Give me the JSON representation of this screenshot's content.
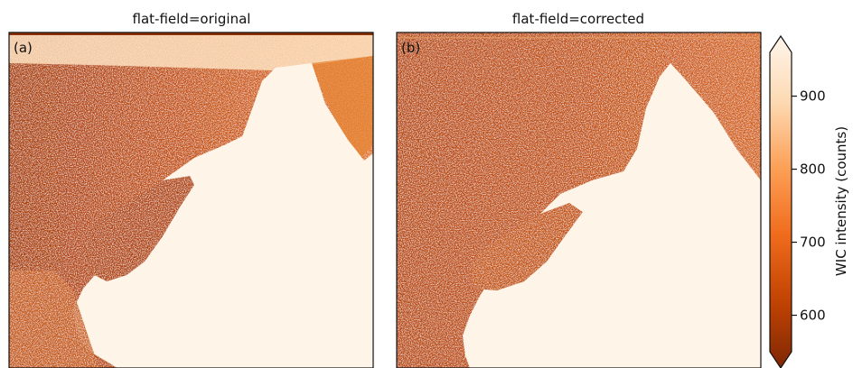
{
  "chart_data": {
    "type": "heatmap",
    "panels": [
      {
        "title": "flat-field=original",
        "label": "(a)"
      },
      {
        "title": "flat-field=corrected",
        "label": "(b)"
      }
    ],
    "colorbar": {
      "label": "WIC intensity (counts)",
      "ticks": [
        600,
        700,
        800,
        900
      ],
      "range": [
        550,
        960
      ],
      "extend": "both",
      "colormap": "Oranges_r",
      "colors": {
        "low": "#7f2704",
        "mid": "#f3701b",
        "high": "#fff5eb"
      }
    }
  }
}
